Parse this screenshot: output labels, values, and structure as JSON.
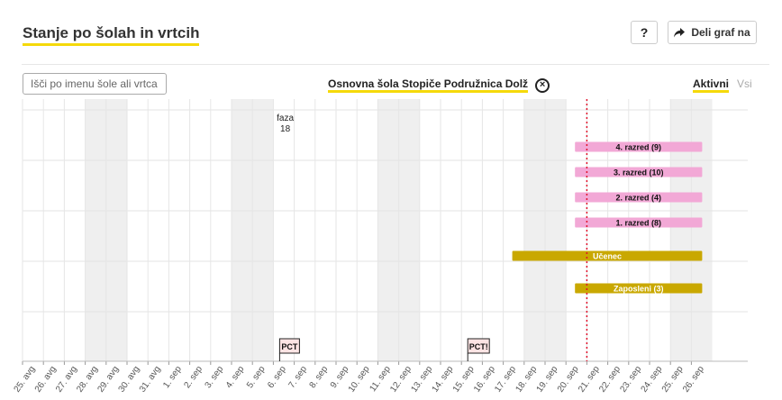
{
  "header": {
    "title": "Stanje po šolah in vrtcih",
    "help_label": "?",
    "share_label": "Deli graf na"
  },
  "toolbar": {
    "search_placeholder": "Išči po imenu šole ali vrtca",
    "selected_school": "Osnovna šola Stopiče Podružnica Dolž",
    "filter_active": "Aktivni",
    "filter_all": "Vsi"
  },
  "colors": {
    "accent": "#f5d90a",
    "class_bar": "#f2a8d6",
    "staff_bar": "#c9a800",
    "today_line": "#e0112b",
    "weekend_shade": "#efefef",
    "marker_bg": "#fde4e4"
  },
  "chart_data": {
    "type": "timeline",
    "x_ticks": [
      "25. avg",
      "26. avg",
      "27. avg",
      "28. avg",
      "29. avg",
      "30. avg",
      "31. avg",
      "1. sep",
      "2. sep",
      "3. sep",
      "4. sep",
      "5. sep",
      "6. sep",
      "7. sep",
      "8. sep",
      "9. sep",
      "10. sep",
      "11. sep",
      "12. sep",
      "13. sep",
      "14. sep",
      "15. sep",
      "16. sep",
      "17. sep",
      "18. sep",
      "19. sep",
      "20. sep",
      "21. sep",
      "22. sep",
      "23. sep",
      "24. sep",
      "25. sep",
      "26. sep"
    ],
    "weekend_days": [
      "28. avg",
      "29. avg",
      "4. sep",
      "5. sep",
      "11. sep",
      "12. sep",
      "18. sep",
      "19. sep",
      "25. sep",
      "26. sep"
    ],
    "today": "21. sep",
    "phase": {
      "label": "faza",
      "value": "18",
      "date": "7. sep"
    },
    "bars": [
      {
        "label": "4. razred (9)",
        "start": "20. sep",
        "end": "26. sep",
        "kind": "class"
      },
      {
        "label": "3. razred (10)",
        "start": "20. sep",
        "end": "26. sep",
        "kind": "class"
      },
      {
        "label": "2. razred (4)",
        "start": "20. sep",
        "end": "26. sep",
        "kind": "class"
      },
      {
        "label": "1. razred (8)",
        "start": "20. sep",
        "end": "26. sep",
        "kind": "class"
      },
      {
        "label": "Učenec",
        "start": "17. sep",
        "end": "26. sep",
        "kind": "staff"
      },
      {
        "label": "Zaposleni (3)",
        "start": "20. sep",
        "end": "26. sep",
        "kind": "staff"
      }
    ],
    "markers": [
      {
        "label": "PCT",
        "date": "6. sep"
      },
      {
        "label": "PCT!",
        "date": "15. sep"
      }
    ]
  }
}
